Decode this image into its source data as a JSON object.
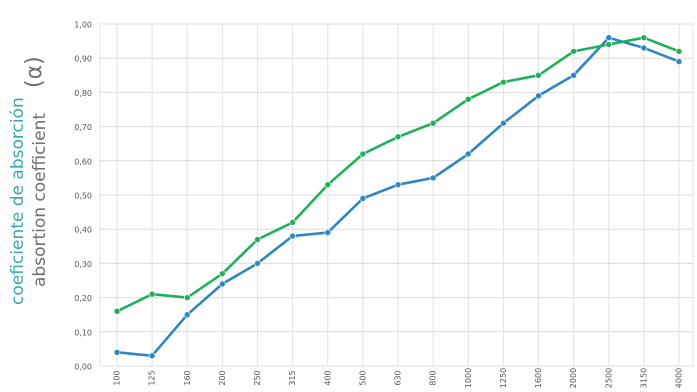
{
  "chart_data": {
    "type": "line",
    "title": "",
    "ylabel_primary": "coeficiente de absorción",
    "ylabel_secondary": "absortion coefficient",
    "ylabel_symbol": "(α)",
    "xlabel": "",
    "categories": [
      "100",
      "125",
      "160",
      "200",
      "250",
      "315",
      "400",
      "500",
      "630",
      "800",
      "1000",
      "1250",
      "1600",
      "2000",
      "2500",
      "3150",
      "4000"
    ],
    "yticks": [
      "0,00",
      "0,10",
      "0,20",
      "0,30",
      "0,40",
      "0,50",
      "0,60",
      "0,70",
      "0,80",
      "0,90",
      "1,00"
    ],
    "ylim": [
      0,
      1
    ],
    "grid": true,
    "legend": "none",
    "series": [
      {
        "color": "#2f86c2",
        "values": [
          0.04,
          0.03,
          0.15,
          0.24,
          0.3,
          0.38,
          0.39,
          0.49,
          0.53,
          0.55,
          0.62,
          0.71,
          0.79,
          0.85,
          0.96,
          0.93,
          0.89
        ]
      },
      {
        "color": "#1fb05a",
        "values": [
          0.16,
          0.21,
          0.2,
          0.27,
          0.37,
          0.42,
          0.53,
          0.62,
          0.67,
          0.71,
          0.78,
          0.83,
          0.85,
          0.92,
          0.94,
          0.96,
          0.92
        ]
      }
    ]
  }
}
